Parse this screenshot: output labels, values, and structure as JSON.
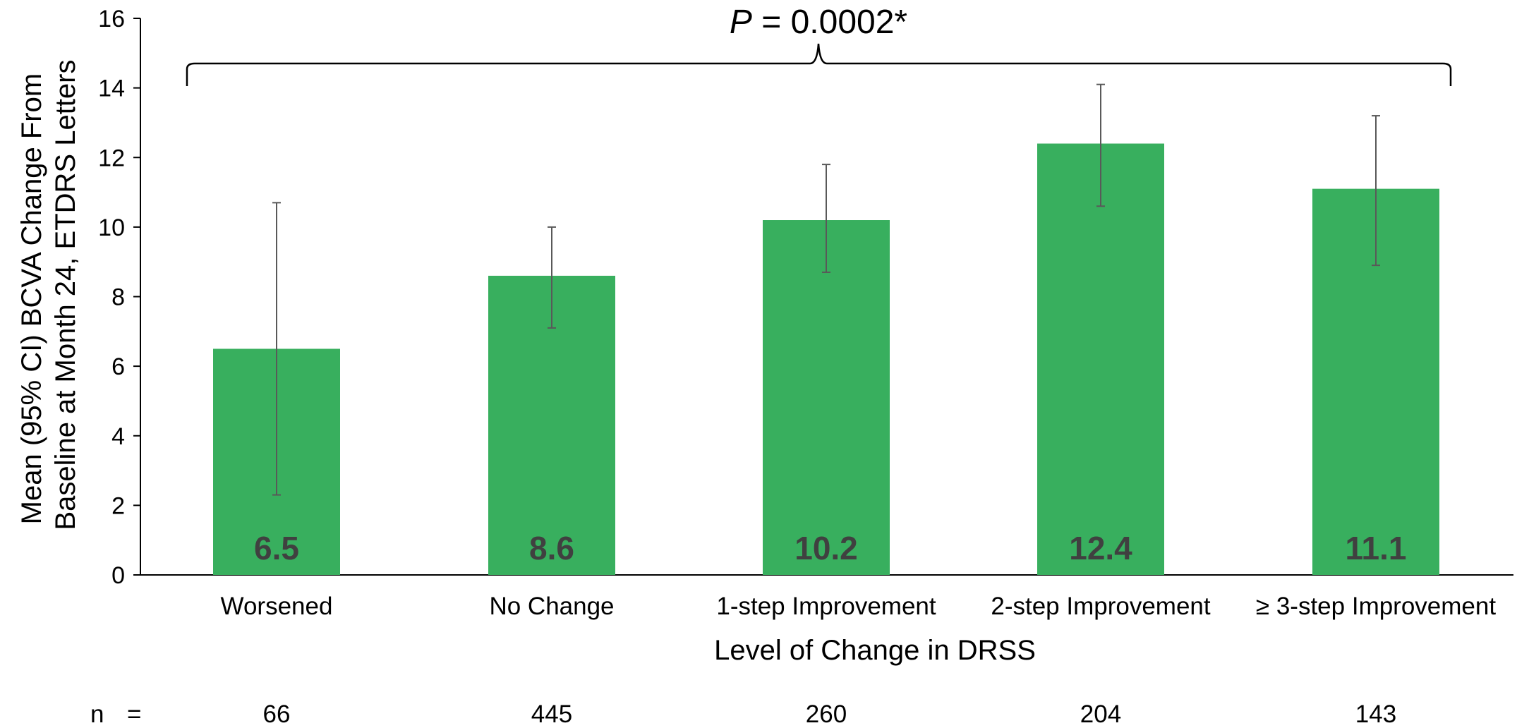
{
  "chart_data": {
    "type": "bar",
    "xlabel": "Level of Change in DRSS",
    "ylabel_lines": [
      "Mean (95% CI) BCVA Change From",
      "Baseline at Month 24, ETDRS Letters"
    ],
    "ylim": [
      0,
      16
    ],
    "yticks": [
      0,
      2,
      4,
      6,
      8,
      10,
      12,
      14,
      16
    ],
    "grid": false,
    "categories": [
      "Worsened",
      "No Change",
      "1-step Improvement",
      "2-step Improvement",
      "≥ 3-step Improvement"
    ],
    "values": [
      6.5,
      8.6,
      10.2,
      12.4,
      11.1
    ],
    "value_labels": [
      "6.5",
      "8.6",
      "10.2",
      "12.4",
      "11.1"
    ],
    "ci_low": [
      2.3,
      7.1,
      8.7,
      10.6,
      8.9
    ],
    "ci_high": [
      10.7,
      10.0,
      11.8,
      14.1,
      13.2
    ],
    "bar_color": "#38AF5E",
    "errorbar_color": "#595959",
    "data_label_color": "#404040",
    "annotation": {
      "p_italic": "P",
      "p_rest": " = 0.0002*"
    },
    "n_row": {
      "label": "n",
      "equals": "=",
      "values": [
        "66",
        "445",
        "260",
        "204",
        "143"
      ]
    }
  }
}
